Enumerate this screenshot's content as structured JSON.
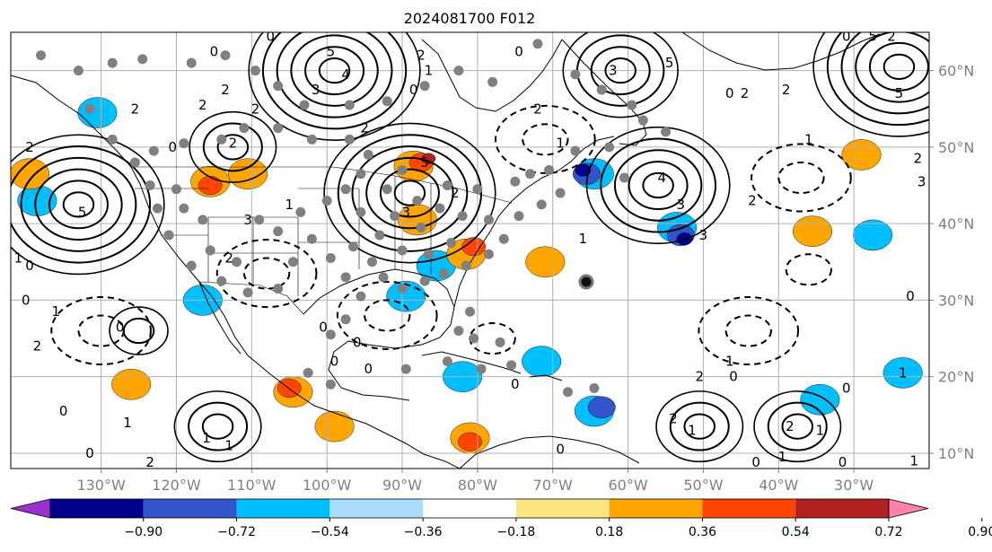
{
  "title": "2024081700 F012",
  "map": {
    "lon_range": [
      -142,
      -20
    ],
    "lat_range": [
      8,
      65
    ],
    "lon_ticks": [
      -130,
      -120,
      -110,
      -100,
      -90,
      -80,
      -70,
      -60,
      -50,
      -40,
      -30
    ],
    "lon_labels": [
      "130°W",
      "120°W",
      "110°W",
      "100°W",
      "90°W",
      "80°W",
      "70°W",
      "60°W",
      "50°W",
      "40°W",
      "30°W"
    ],
    "lat_ticks": [
      10,
      20,
      30,
      40,
      50,
      60
    ],
    "lat_labels": [
      "10°N",
      "20°N",
      "30°N",
      "40°N",
      "50°N",
      "60°N"
    ],
    "grid": true
  },
  "colorbar": {
    "levels": [
      -1.08,
      -0.9,
      -0.72,
      -0.54,
      -0.36,
      -0.18,
      0.18,
      0.36,
      0.54,
      0.72,
      0.9,
      1.08
    ],
    "labels": [
      "−0.90",
      "−0.72",
      "−0.54",
      "−0.36",
      "−0.18",
      "0.18",
      "0.36",
      "0.54",
      "0.72",
      "0.90"
    ],
    "colors": [
      "#9932cc",
      "#00008b",
      "#3355cc",
      "#00bfff",
      "#aadcff",
      "#ffffff",
      "#ffe680",
      "#ffa500",
      "#ff4500",
      "#b22222",
      "#ff82ab"
    ],
    "extend": "both"
  },
  "shading": [
    {
      "level": -0.36,
      "color": "#00bfff",
      "blobs": [
        [
          -82,
          20.0
        ],
        [
          -64.5,
          46.5
        ],
        [
          -53.5,
          39.5
        ],
        [
          -138.5,
          43.0
        ],
        [
          -27.5,
          38.5
        ],
        [
          -23.5,
          20.5
        ],
        [
          -34.5,
          17.0
        ],
        [
          -71.5,
          22.0
        ],
        [
          -130.5,
          54.5
        ],
        [
          -85.5,
          34.5
        ],
        [
          -64.5,
          15.5
        ],
        [
          -89.5,
          30.5
        ],
        [
          -116.5,
          30.0
        ]
      ]
    },
    {
      "level": -0.54,
      "color": "#3355cc",
      "blobs": [
        [
          -65.5,
          46.5
        ],
        [
          -53.0,
          38.5
        ],
        [
          -63.5,
          16.0
        ]
      ]
    },
    {
      "level": -0.72,
      "color": "#00008b",
      "blobs": [
        [
          -66.0,
          47.0
        ],
        [
          -52.5,
          38.0
        ]
      ]
    },
    {
      "level": 0.36,
      "color": "#ffa500",
      "blobs": [
        [
          -88.5,
          47.5
        ],
        [
          -110.5,
          46.5
        ],
        [
          -115.5,
          45.5
        ],
        [
          -139.5,
          46.5
        ],
        [
          -81.5,
          36.0
        ],
        [
          -71.0,
          35.0
        ],
        [
          -29.0,
          49.0
        ],
        [
          -104.5,
          18.0
        ],
        [
          -81.0,
          12.0
        ],
        [
          -99.0,
          13.5
        ],
        [
          -88.0,
          40.5
        ],
        [
          -35.5,
          39.0
        ],
        [
          -126.0,
          19.0
        ]
      ]
    },
    {
      "level": 0.54,
      "color": "#ff4500",
      "blobs": [
        [
          -87.5,
          48.0
        ],
        [
          -115.5,
          45.0
        ],
        [
          -80.5,
          37.0
        ],
        [
          -105.0,
          18.5
        ],
        [
          -81.0,
          11.5
        ]
      ]
    },
    {
      "level": 0.72,
      "color": "#b22222",
      "blobs": [
        [
          -86.5,
          48.5
        ]
      ]
    }
  ],
  "contours": {
    "positive_centers": [
      {
        "lon": -133.0,
        "lat": 42.5,
        "peak": 5
      },
      {
        "lon": -89.0,
        "lat": 44.0,
        "peak": 5
      },
      {
        "lon": -56.0,
        "lat": 45.0,
        "peak": 4
      },
      {
        "lon": -99.0,
        "lat": 60.0,
        "peak": 5
      },
      {
        "lon": -61.0,
        "lat": 60.0,
        "peak": 3
      },
      {
        "lon": -24.0,
        "lat": 60.5,
        "peak": 5
      },
      {
        "lon": -112.5,
        "lat": 50.0,
        "peak": 2
      },
      {
        "lon": -114.5,
        "lat": 13.5,
        "peak": 2
      },
      {
        "lon": -50.5,
        "lat": 13.5,
        "peak": 2
      },
      {
        "lon": -37.5,
        "lat": 13.5,
        "peak": 2
      },
      {
        "lon": -125.0,
        "lat": 26.0,
        "peak": 1
      }
    ],
    "negative_centers": [
      {
        "lon": -92.0,
        "lat": 28.0,
        "peak": -2
      },
      {
        "lon": -44.0,
        "lat": 26.0,
        "peak": -2
      },
      {
        "lon": -108.0,
        "lat": 33.5,
        "peak": -2
      },
      {
        "lon": -71.0,
        "lat": 51.0,
        "peak": -2
      },
      {
        "lon": -37.0,
        "lat": 46.0,
        "peak": -2
      },
      {
        "lon": -130.0,
        "lat": 26.0,
        "peak": -2
      },
      {
        "lon": -78.0,
        "lat": 25.0,
        "peak": -1
      },
      {
        "lon": -36.0,
        "lat": 34.0,
        "peak": -1
      }
    ],
    "labels": [
      {
        "lon": -125.5,
        "lat": 55.0,
        "text": "2"
      },
      {
        "lon": -116.5,
        "lat": 55.5,
        "text": "2"
      },
      {
        "lon": -139.5,
        "lat": 50.0,
        "text": "2"
      },
      {
        "lon": -132.5,
        "lat": 41.5,
        "text": "5"
      },
      {
        "lon": -141.0,
        "lat": 35.5,
        "text": "1"
      },
      {
        "lon": -139.5,
        "lat": 34.5,
        "text": "0"
      },
      {
        "lon": -140.0,
        "lat": 30.0,
        "text": "0"
      },
      {
        "lon": -136.0,
        "lat": 28.5,
        "text": "1"
      },
      {
        "lon": -138.5,
        "lat": 24.0,
        "text": "2"
      },
      {
        "lon": -127.5,
        "lat": 26.5,
        "text": "0"
      },
      {
        "lon": -135.0,
        "lat": 15.5,
        "text": "0"
      },
      {
        "lon": -131.5,
        "lat": 10.0,
        "text": "0"
      },
      {
        "lon": -123.5,
        "lat": 8.8,
        "text": "2"
      },
      {
        "lon": -116.0,
        "lat": 12.0,
        "text": "1"
      },
      {
        "lon": -113.0,
        "lat": 11.0,
        "text": "1"
      },
      {
        "lon": -112.5,
        "lat": 50.5,
        "text": "2"
      },
      {
        "lon": -110.5,
        "lat": 40.5,
        "text": "3"
      },
      {
        "lon": -99.5,
        "lat": 62.5,
        "text": "5"
      },
      {
        "lon": -97.5,
        "lat": 59.5,
        "text": "4"
      },
      {
        "lon": -101.5,
        "lat": 57.5,
        "text": "3"
      },
      {
        "lon": -113.5,
        "lat": 57.5,
        "text": "2"
      },
      {
        "lon": -107.5,
        "lat": 64.5,
        "text": "0"
      },
      {
        "lon": -95.0,
        "lat": 52.5,
        "text": "2"
      },
      {
        "lon": -87.0,
        "lat": 48.0,
        "text": "5"
      },
      {
        "lon": -89.5,
        "lat": 41.5,
        "text": "3"
      },
      {
        "lon": -83.0,
        "lat": 44.0,
        "text": "2"
      },
      {
        "lon": -99.0,
        "lat": 22.0,
        "text": "0"
      },
      {
        "lon": -94.5,
        "lat": 21.0,
        "text": "0"
      },
      {
        "lon": -87.5,
        "lat": 62.0,
        "text": "2"
      },
      {
        "lon": -69.0,
        "lat": 50.5,
        "text": "1"
      },
      {
        "lon": -66.0,
        "lat": 38.0,
        "text": "1"
      },
      {
        "lon": -62.0,
        "lat": 60.0,
        "text": "3"
      },
      {
        "lon": -54.5,
        "lat": 61.0,
        "text": "5"
      },
      {
        "lon": -55.5,
        "lat": 46.0,
        "text": "4"
      },
      {
        "lon": -53.0,
        "lat": 42.5,
        "text": "3"
      },
      {
        "lon": -46.5,
        "lat": 57.0,
        "text": "0"
      },
      {
        "lon": -44.5,
        "lat": 57.0,
        "text": "2"
      },
      {
        "lon": -39.0,
        "lat": 57.5,
        "text": "2"
      },
      {
        "lon": -36.0,
        "lat": 51.0,
        "text": "1"
      },
      {
        "lon": -43.5,
        "lat": 43.0,
        "text": "2"
      },
      {
        "lon": -50.0,
        "lat": 38.5,
        "text": "3"
      },
      {
        "lon": -50.5,
        "lat": 20.0,
        "text": "2"
      },
      {
        "lon": -46.5,
        "lat": 22.0,
        "text": "1"
      },
      {
        "lon": -46.0,
        "lat": 20.0,
        "text": "0"
      },
      {
        "lon": -38.5,
        "lat": 13.5,
        "text": "2"
      },
      {
        "lon": -34.5,
        "lat": 13.0,
        "text": "1"
      },
      {
        "lon": -51.5,
        "lat": 13.0,
        "text": "1"
      },
      {
        "lon": -54.0,
        "lat": 14.5,
        "text": "2"
      },
      {
        "lon": -31.0,
        "lat": 18.5,
        "text": "0"
      },
      {
        "lon": -22.5,
        "lat": 30.5,
        "text": "0"
      },
      {
        "lon": -23.5,
        "lat": 20.5,
        "text": "1"
      },
      {
        "lon": -21.5,
        "lat": 48.5,
        "text": "2"
      },
      {
        "lon": -21.0,
        "lat": 45.5,
        "text": "3"
      },
      {
        "lon": -24.0,
        "lat": 57.0,
        "text": "5"
      },
      {
        "lon": -31.0,
        "lat": 64.5,
        "text": "0"
      },
      {
        "lon": -27.5,
        "lat": 64.5,
        "text": "5"
      },
      {
        "lon": -25.0,
        "lat": 64.5,
        "text": "2"
      },
      {
        "lon": -22.0,
        "lat": 9.0,
        "text": "1"
      },
      {
        "lon": -31.5,
        "lat": 8.8,
        "text": "0"
      },
      {
        "lon": -43.0,
        "lat": 8.8,
        "text": "0"
      },
      {
        "lon": -39.5,
        "lat": 9.5,
        "text": "1"
      },
      {
        "lon": -69.0,
        "lat": 10.5,
        "text": "0"
      },
      {
        "lon": -75.0,
        "lat": 19.0,
        "text": "0"
      },
      {
        "lon": -88.5,
        "lat": 57.5,
        "text": "0"
      },
      {
        "lon": -74.5,
        "lat": 62.5,
        "text": "0"
      },
      {
        "lon": -72.0,
        "lat": 55.0,
        "text": "2"
      },
      {
        "lon": -86.5,
        "lat": 60.0,
        "text": "1"
      },
      {
        "lon": -115.0,
        "lat": 62.5,
        "text": "0"
      },
      {
        "lon": -109.5,
        "lat": 55.0,
        "text": "2"
      },
      {
        "lon": -120.5,
        "lat": 50.0,
        "text": "0"
      },
      {
        "lon": -105.0,
        "lat": 42.5,
        "text": "1"
      },
      {
        "lon": -113.0,
        "lat": 35.5,
        "text": "2"
      },
      {
        "lon": -100.5,
        "lat": 26.5,
        "text": "0"
      },
      {
        "lon": -96.0,
        "lat": 24.5,
        "text": "0"
      },
      {
        "lon": -126.5,
        "lat": 14.0,
        "text": "1"
      }
    ]
  },
  "obs_points": [
    [
      -138.0,
      62.0
    ],
    [
      -133.0,
      60.0
    ],
    [
      -128.5,
      61.0
    ],
    [
      -124.5,
      61.5
    ],
    [
      -118.0,
      61.0
    ],
    [
      -113.5,
      62.0
    ],
    [
      -109.5,
      60.0
    ],
    [
      -106.5,
      58.0
    ],
    [
      -103.0,
      55.5
    ],
    [
      -97.0,
      55.5
    ],
    [
      -92.0,
      56.0
    ],
    [
      -87.0,
      58.0
    ],
    [
      -82.5,
      60.0
    ],
    [
      -78.0,
      58.5
    ],
    [
      -72.0,
      63.5
    ],
    [
      -67.0,
      59.5
    ],
    [
      -63.5,
      57.5
    ],
    [
      -59.5,
      55.5
    ],
    [
      -58.0,
      53.5
    ],
    [
      -55.0,
      52.0
    ],
    [
      -62.5,
      50.0
    ],
    [
      -67.0,
      49.5
    ],
    [
      -70.5,
      47.0
    ],
    [
      -75.0,
      45.5
    ],
    [
      -80.0,
      44.5
    ],
    [
      -84.0,
      45.0
    ],
    [
      -90.0,
      47.0
    ],
    [
      -94.5,
      49.0
    ],
    [
      -97.0,
      51.0
    ],
    [
      -102.0,
      51.0
    ],
    [
      -106.5,
      52.5
    ],
    [
      -111.0,
      52.5
    ],
    [
      -114.0,
      51.0
    ],
    [
      -119.0,
      50.5
    ],
    [
      -123.0,
      49.5
    ],
    [
      -125.5,
      48.0
    ],
    [
      -123.5,
      45.0
    ],
    [
      -122.5,
      42.0
    ],
    [
      -121.0,
      38.5
    ],
    [
      -118.0,
      34.5
    ],
    [
      -115.5,
      36.5
    ],
    [
      -112.0,
      35.0
    ],
    [
      -109.0,
      40.5
    ],
    [
      -106.5,
      39.0
    ],
    [
      -103.5,
      41.5
    ],
    [
      -100.0,
      43.0
    ],
    [
      -97.5,
      44.5
    ],
    [
      -95.5,
      46.5
    ],
    [
      -92.0,
      44.5
    ],
    [
      -88.0,
      43.0
    ],
    [
      -85.0,
      42.0
    ],
    [
      -82.0,
      41.0
    ],
    [
      -78.5,
      40.5
    ],
    [
      -74.5,
      41.0
    ],
    [
      -71.5,
      42.5
    ],
    [
      -76.5,
      38.0
    ],
    [
      -78.5,
      36.0
    ],
    [
      -81.5,
      34.5
    ],
    [
      -84.5,
      33.5
    ],
    [
      -87.0,
      32.5
    ],
    [
      -90.0,
      31.5
    ],
    [
      -92.5,
      33.0
    ],
    [
      -95.5,
      30.5
    ],
    [
      -97.5,
      33.0
    ],
    [
      -99.5,
      35.5
    ],
    [
      -102.0,
      38.0
    ],
    [
      -104.5,
      35.0
    ],
    [
      -106.5,
      31.5
    ],
    [
      -110.5,
      31.0
    ],
    [
      -114.0,
      32.5
    ],
    [
      -97.5,
      27.5
    ],
    [
      -99.5,
      25.5
    ],
    [
      -81.0,
      28.5
    ],
    [
      -82.5,
      26.0
    ],
    [
      -80.5,
      25.0
    ],
    [
      -77.0,
      24.5
    ],
    [
      -79.5,
      21.0
    ],
    [
      -75.5,
      21.5
    ],
    [
      -68.0,
      18.0
    ],
    [
      -64.5,
      18.5
    ],
    [
      -93.0,
      38.5
    ],
    [
      -90.0,
      36.5
    ],
    [
      -86.5,
      36.0
    ],
    [
      -83.5,
      37.5
    ],
    [
      -87.5,
      39.5
    ],
    [
      -91.0,
      41.0
    ],
    [
      -95.5,
      41.5
    ],
    [
      -96.5,
      37.0
    ],
    [
      -94.0,
      35.0
    ],
    [
      -131.5,
      55.0
    ],
    [
      -128.5,
      51.0
    ],
    [
      -120.0,
      44.5
    ],
    [
      -116.5,
      40.5
    ],
    [
      -119.0,
      42.0
    ],
    [
      -73.0,
      46.5
    ],
    [
      -69.0,
      44.0
    ],
    [
      -60.5,
      46.0
    ],
    [
      -102.5,
      20.5
    ],
    [
      -99.5,
      19.0
    ],
    [
      -84.0,
      22.0
    ],
    [
      -89.5,
      21.0
    ]
  ]
}
